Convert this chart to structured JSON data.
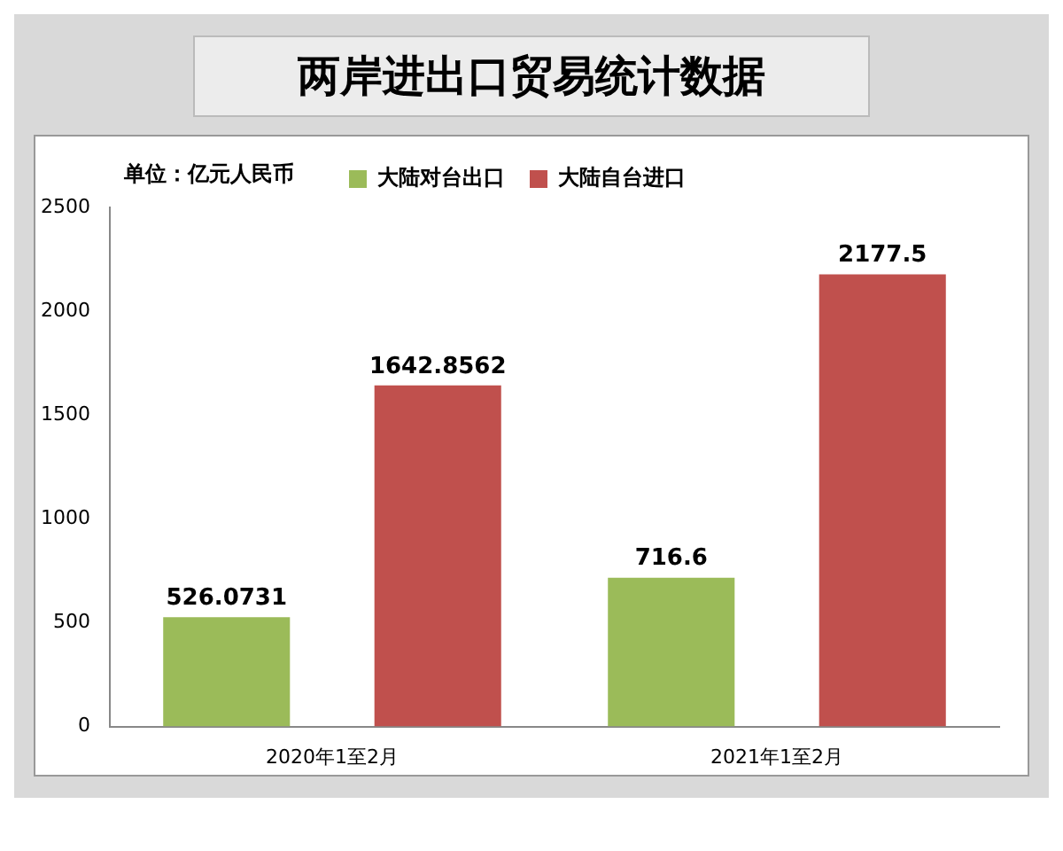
{
  "chart_data": {
    "type": "bar",
    "title": "两岸进出口贸易统计数据",
    "categories": [
      "2020年1至2月",
      "2021年1至2月"
    ],
    "series": [
      {
        "name": "大陆对台出口",
        "color": "#9bbb59",
        "values": [
          526.0731,
          716.6
        ]
      },
      {
        "name": "大陆自台进口",
        "color": "#c0504d",
        "values": [
          1642.8562,
          2177.5
        ]
      }
    ],
    "ylim": [
      0,
      2500
    ],
    "yticks": [
      0,
      500,
      1000,
      1500,
      2000,
      2500
    ],
    "annotations": [
      "单位：亿元人民币"
    ],
    "data_labels": true,
    "grid": false,
    "legend": "top"
  }
}
